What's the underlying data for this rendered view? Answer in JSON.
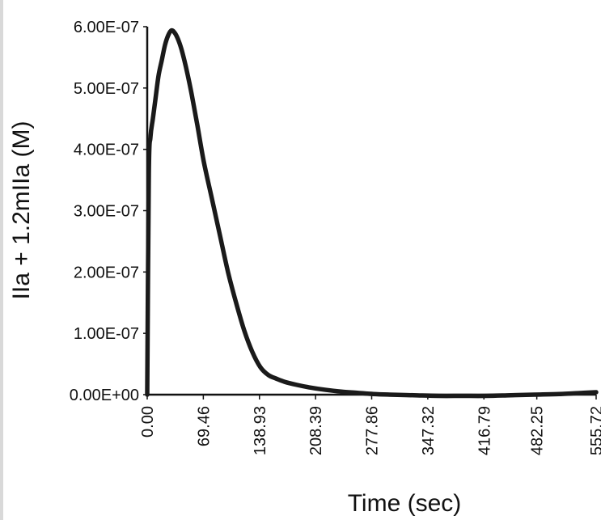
{
  "chart_data": {
    "type": "line",
    "title": "",
    "xlabel": "Time (sec)",
    "ylabel": "IIa + 1.2mIIa (M)",
    "xlim": [
      0,
      555.72
    ],
    "ylim": [
      0,
      6e-07
    ],
    "x_ticks": [
      0,
      69.46,
      138.93,
      208.39,
      277.86,
      347.32,
      416.79,
      482.25,
      555.72
    ],
    "x_tick_labels": [
      "0.00",
      "69.46",
      "138.93",
      "208.39",
      "277.86",
      "347.32",
      "416.79",
      "482.25",
      "555.72"
    ],
    "y_ticks": [
      0,
      1e-07,
      2e-07,
      3e-07,
      4e-07,
      5e-07,
      6e-07
    ],
    "y_tick_labels": [
      "0.00E+00",
      "1.00E-07",
      "2.00E-07",
      "3.00E-07",
      "4.00E-07",
      "5.00E-07",
      "6.00E-07"
    ],
    "grid": false,
    "legend": "none",
    "line_color": "#1a1a1a",
    "series": [
      {
        "x": [
          0,
          2,
          4,
          7,
          10,
          14,
          18,
          22,
          26,
          30,
          34,
          38,
          42,
          46,
          50,
          55,
          62,
          70,
          80,
          90,
          100,
          110,
          120,
          130,
          140,
          150,
          160,
          170,
          185,
          200,
          220,
          240,
          260,
          280,
          300,
          330,
          360,
          390,
          420,
          450,
          480,
          510,
          540,
          555.72
        ],
        "values": [
          0,
          3.6e-07,
          4.2e-07,
          4.5e-07,
          4.8e-07,
          5.2e-07,
          5.45e-07,
          5.7e-07,
          5.86e-07,
          5.94e-07,
          5.9e-07,
          5.8e-07,
          5.65e-07,
          5.45e-07,
          5.22e-07,
          4.9e-07,
          4.4e-07,
          3.8e-07,
          3.2e-07,
          2.6e-07,
          2e-07,
          1.5e-07,
          1.05e-07,
          7e-08,
          4.5e-08,
          3.2e-08,
          2.6e-08,
          2.1e-08,
          1.6e-08,
          1.2e-08,
          8e-09,
          5e-09,
          3e-09,
          1e-09,
          0,
          -1e-09,
          -2e-09,
          -2e-09,
          -2e-09,
          -1e-09,
          0,
          1e-09,
          3e-09,
          4e-09
        ]
      }
    ]
  }
}
